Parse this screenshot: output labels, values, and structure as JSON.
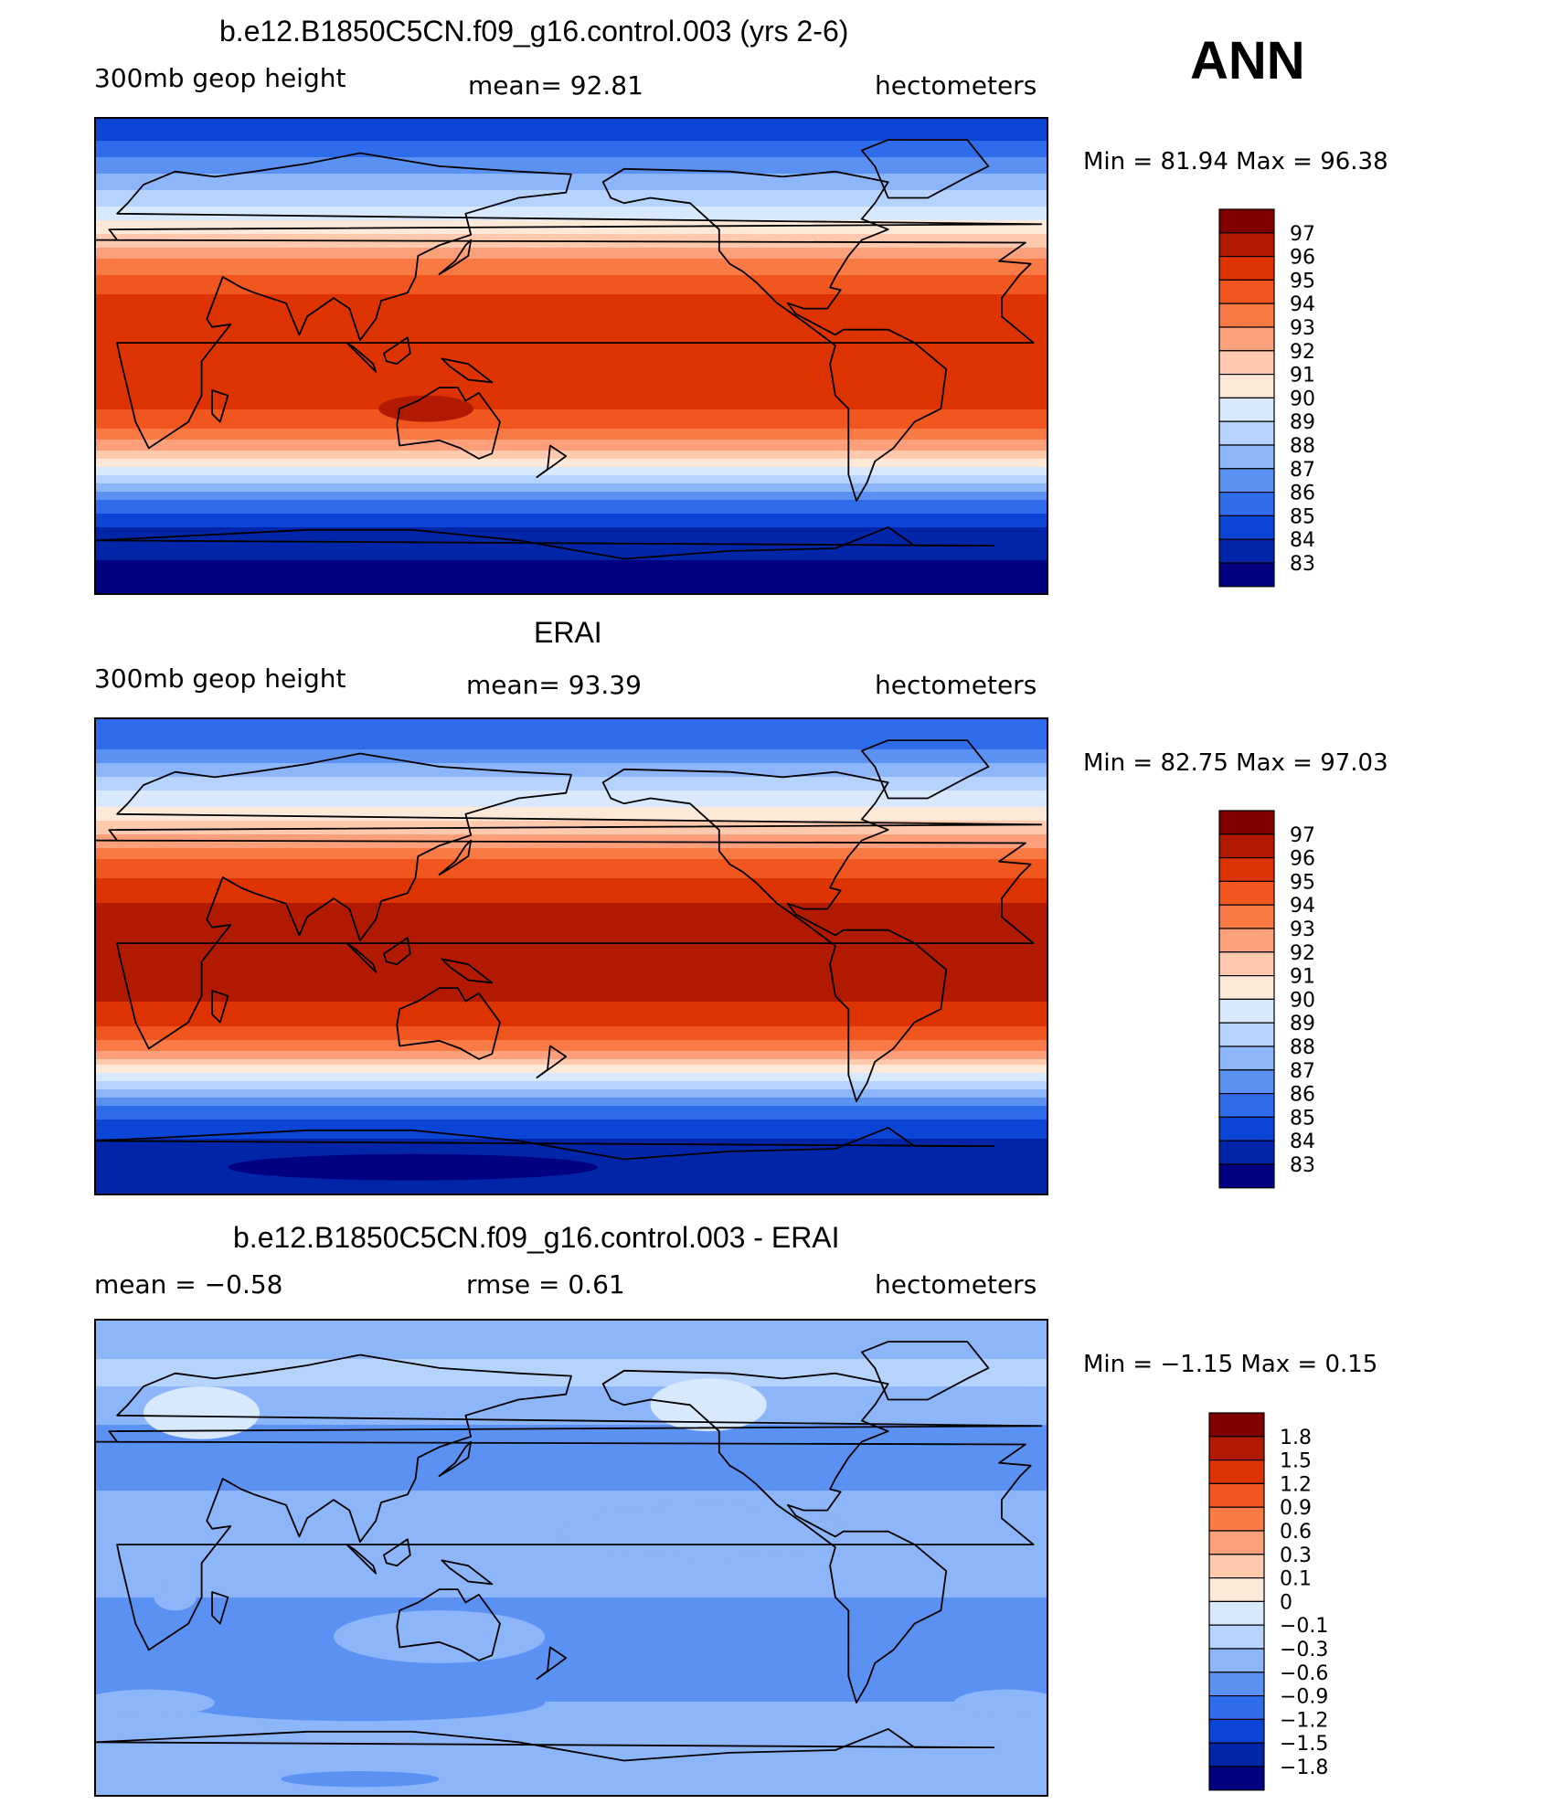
{
  "header": {
    "season": "ANN"
  },
  "panels": [
    {
      "title": "b.e12.B1850C5CN.f09_g16.control.003 (yrs 2-6)",
      "left_label": "300mb geop height",
      "center_label": "mean=   92.81",
      "units": "hectometers",
      "minmax": "Min =   81.94 Max =   96.38"
    },
    {
      "title": "ERAI",
      "left_label": "300mb geop height",
      "center_label": "mean=   93.39",
      "units": "hectometers",
      "minmax": "Min =   82.75 Max =   97.03"
    },
    {
      "title": "b.e12.B1850C5CN.f09_g16.control.003 - ERAI",
      "left_label": "mean =   −0.58",
      "center_label": "rmse =   0.61",
      "units": "hectometers",
      "minmax": "Min =   −1.15 Max =   0.15"
    }
  ],
  "chart_data": [
    {
      "type": "heatmap",
      "title": "b.e12.B1850C5CN.f09_g16.control.003 (yrs 2-6)",
      "variable": "300mb geop height",
      "units": "hectometers",
      "mean": 92.81,
      "min": 81.94,
      "max": 96.38,
      "xlim": [
        0,
        360
      ],
      "ylim": [
        -90,
        90
      ],
      "legend_levels": [
        "97",
        "96",
        "95",
        "94",
        "93",
        "92",
        "91",
        "90",
        "89",
        "88",
        "87",
        "86",
        "85",
        "84",
        "83"
      ],
      "zonal_profile": {
        "lat": [
          85,
          75,
          65,
          55,
          45,
          35,
          25,
          15,
          5,
          -5,
          -15,
          -25,
          -35,
          -45,
          -55,
          -65,
          -75,
          -85
        ],
        "value": [
          84.6,
          86.0,
          87.7,
          89.3,
          91.2,
          93.3,
          94.9,
          95.7,
          95.9,
          95.8,
          95.5,
          94.5,
          92.3,
          89.0,
          85.8,
          84.0,
          83.2,
          82.4
        ]
      }
    },
    {
      "type": "heatmap",
      "title": "ERAI",
      "variable": "300mb geop height",
      "units": "hectometers",
      "mean": 93.39,
      "min": 82.75,
      "max": 97.03,
      "xlim": [
        0,
        360
      ],
      "ylim": [
        -90,
        90
      ],
      "legend_levels": [
        "97",
        "96",
        "95",
        "94",
        "93",
        "92",
        "91",
        "90",
        "89",
        "88",
        "87",
        "86",
        "85",
        "84",
        "83"
      ],
      "zonal_profile": {
        "lat": [
          85,
          75,
          65,
          55,
          45,
          35,
          25,
          15,
          5,
          -5,
          -15,
          -25,
          -35,
          -45,
          -55,
          -65,
          -75,
          -85
        ],
        "value": [
          85.0,
          86.6,
          88.6,
          90.2,
          92.3,
          94.3,
          95.6,
          96.4,
          96.5,
          96.4,
          96.2,
          95.4,
          93.2,
          89.8,
          86.4,
          84.3,
          83.5,
          83.0
        ]
      }
    },
    {
      "type": "heatmap",
      "title": "b.e12.B1850C5CN.f09_g16.control.003 - ERAI",
      "units": "hectometers",
      "mean": -0.58,
      "rmse": 0.61,
      "min": -1.15,
      "max": 0.15,
      "xlim": [
        0,
        360
      ],
      "ylim": [
        -90,
        90
      ],
      "legend_levels": [
        "1.8",
        "1.5",
        "1.2",
        "0.9",
        "0.6",
        "0.3",
        "0.1",
        "0",
        "−0.1",
        "−0.3",
        "−0.6",
        "−0.9",
        "−1.2",
        "−1.5",
        "−1.8"
      ],
      "zonal_profile": {
        "lat": [
          85,
          75,
          65,
          55,
          45,
          35,
          25,
          15,
          5,
          -5,
          -15,
          -25,
          -35,
          -45,
          -55,
          -65,
          -75,
          -85
        ],
        "value": [
          -0.4,
          -0.3,
          -0.3,
          -0.5,
          -0.7,
          -0.7,
          -0.6,
          -0.6,
          -0.6,
          -0.6,
          -0.6,
          -0.7,
          -0.8,
          -0.8,
          -0.6,
          -0.5,
          -0.6,
          -0.6
        ]
      }
    }
  ]
}
